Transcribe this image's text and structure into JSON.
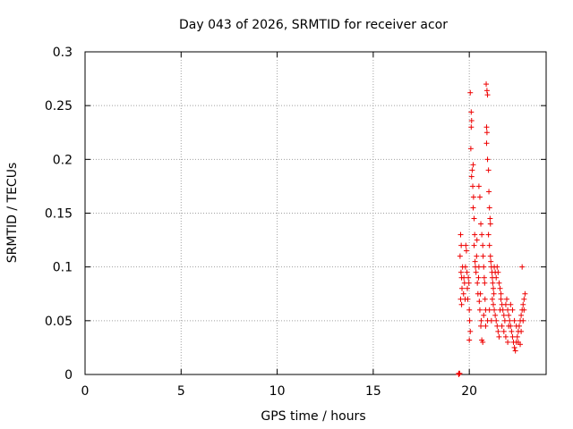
{
  "chart_data": {
    "type": "scatter",
    "title": "Day 043 of 2026, SRMTID for receiver acor",
    "xlabel": "GPS time / hours",
    "ylabel": "SRMTID / TECUs",
    "xlim": [
      0,
      24
    ],
    "ylim": [
      0,
      0.3
    ],
    "xticks": [
      0,
      5,
      10,
      15,
      20
    ],
    "xtick_labels": [
      "0",
      "5",
      "10",
      "15",
      "20"
    ],
    "yticks": [
      0,
      0.05,
      0.1,
      0.15,
      0.2,
      0.25,
      0.3
    ],
    "ytick_labels": [
      "0",
      "0.05",
      "0.1",
      "0.15",
      "0.2",
      "0.25",
      "0.3"
    ],
    "grid": true,
    "marker": "+",
    "color": "#ee0000",
    "series": [
      {
        "name": "SRMTID",
        "points": [
          [
            19.45,
            0.0
          ],
          [
            19.45,
            0.001
          ],
          [
            19.5,
            0.001
          ],
          [
            19.55,
            0.13
          ],
          [
            19.58,
            0.12
          ],
          [
            19.6,
            0.09
          ],
          [
            19.62,
            0.08
          ],
          [
            19.55,
            0.07
          ],
          [
            19.57,
            0.095
          ],
          [
            19.6,
            0.065
          ],
          [
            19.65,
            0.1
          ],
          [
            19.52,
            0.11
          ],
          [
            19.7,
            0.075
          ],
          [
            19.72,
            0.09
          ],
          [
            19.75,
            0.085
          ],
          [
            19.78,
            0.07
          ],
          [
            19.8,
            0.1
          ],
          [
            19.82,
            0.12
          ],
          [
            19.85,
            0.115
          ],
          [
            19.88,
            0.095
          ],
          [
            19.9,
            0.08
          ],
          [
            19.92,
            0.07
          ],
          [
            19.95,
            0.09
          ],
          [
            19.98,
            0.085
          ],
          [
            20.0,
            0.06
          ],
          [
            20.02,
            0.05
          ],
          [
            20.05,
            0.04
          ],
          [
            20.0,
            0.032
          ],
          [
            20.05,
            0.262
          ],
          [
            20.1,
            0.244
          ],
          [
            20.12,
            0.236
          ],
          [
            20.1,
            0.23
          ],
          [
            20.08,
            0.21
          ],
          [
            20.15,
            0.19
          ],
          [
            20.12,
            0.184
          ],
          [
            20.18,
            0.175
          ],
          [
            20.2,
            0.195
          ],
          [
            20.22,
            0.165
          ],
          [
            20.2,
            0.155
          ],
          [
            20.25,
            0.145
          ],
          [
            20.28,
            0.13
          ],
          [
            20.25,
            0.12
          ],
          [
            20.3,
            0.105
          ],
          [
            20.32,
            0.1
          ],
          [
            20.35,
            0.095
          ],
          [
            20.38,
            0.11
          ],
          [
            20.4,
            0.125
          ],
          [
            20.42,
            0.085
          ],
          [
            20.45,
            0.075
          ],
          [
            20.48,
            0.09
          ],
          [
            20.5,
            0.1
          ],
          [
            20.52,
            0.068
          ],
          [
            20.55,
            0.06
          ],
          [
            20.58,
            0.075
          ],
          [
            20.6,
            0.045
          ],
          [
            20.62,
            0.05
          ],
          [
            20.65,
            0.032
          ],
          [
            20.5,
            0.175
          ],
          [
            20.55,
            0.165
          ],
          [
            20.6,
            0.14
          ],
          [
            20.65,
            0.13
          ],
          [
            20.7,
            0.12
          ],
          [
            20.72,
            0.11
          ],
          [
            20.75,
            0.1
          ],
          [
            20.78,
            0.09
          ],
          [
            20.8,
            0.085
          ],
          [
            20.82,
            0.07
          ],
          [
            20.85,
            0.06
          ],
          [
            20.88,
            0.27
          ],
          [
            20.92,
            0.264
          ],
          [
            20.95,
            0.26
          ],
          [
            20.9,
            0.23
          ],
          [
            20.92,
            0.225
          ],
          [
            20.9,
            0.215
          ],
          [
            20.95,
            0.2
          ],
          [
            21.0,
            0.19
          ],
          [
            21.02,
            0.17
          ],
          [
            21.05,
            0.155
          ],
          [
            21.08,
            0.145
          ],
          [
            21.1,
            0.14
          ],
          [
            21.0,
            0.13
          ],
          [
            21.05,
            0.12
          ],
          [
            21.1,
            0.11
          ],
          [
            21.12,
            0.105
          ],
          [
            21.15,
            0.1
          ],
          [
            21.18,
            0.095
          ],
          [
            21.2,
            0.09
          ],
          [
            21.22,
            0.085
          ],
          [
            21.25,
            0.08
          ],
          [
            21.28,
            0.075
          ],
          [
            21.3,
            0.1
          ],
          [
            21.35,
            0.095
          ],
          [
            21.4,
            0.09
          ],
          [
            21.45,
            0.1
          ],
          [
            21.5,
            0.095
          ],
          [
            21.55,
            0.085
          ],
          [
            21.6,
            0.08
          ],
          [
            21.65,
            0.075
          ],
          [
            21.2,
            0.07
          ],
          [
            21.25,
            0.065
          ],
          [
            21.3,
            0.06
          ],
          [
            21.35,
            0.055
          ],
          [
            21.4,
            0.05
          ],
          [
            21.45,
            0.045
          ],
          [
            21.5,
            0.04
          ],
          [
            21.55,
            0.035
          ],
          [
            21.6,
            0.06
          ],
          [
            21.65,
            0.07
          ],
          [
            21.7,
            0.065
          ],
          [
            21.75,
            0.06
          ],
          [
            21.8,
            0.055
          ],
          [
            21.85,
            0.05
          ],
          [
            21.9,
            0.065
          ],
          [
            21.95,
            0.07
          ],
          [
            22.0,
            0.06
          ],
          [
            22.05,
            0.055
          ],
          [
            22.1,
            0.05
          ],
          [
            22.15,
            0.045
          ],
          [
            22.2,
            0.04
          ],
          [
            22.25,
            0.035
          ],
          [
            22.3,
            0.03
          ],
          [
            22.35,
            0.025
          ],
          [
            22.4,
            0.022
          ],
          [
            22.45,
            0.03
          ],
          [
            22.5,
            0.035
          ],
          [
            22.55,
            0.04
          ],
          [
            22.6,
            0.045
          ],
          [
            22.65,
            0.05
          ],
          [
            22.7,
            0.055
          ],
          [
            22.75,
            0.06
          ],
          [
            22.8,
            0.065
          ],
          [
            22.85,
            0.07
          ],
          [
            22.9,
            0.075
          ],
          [
            22.75,
            0.1
          ],
          [
            22.05,
            0.045
          ],
          [
            22.15,
            0.065
          ],
          [
            22.25,
            0.06
          ],
          [
            22.35,
            0.05
          ],
          [
            22.45,
            0.045
          ],
          [
            22.55,
            0.03
          ],
          [
            22.65,
            0.028
          ],
          [
            22.7,
            0.04
          ],
          [
            22.8,
            0.05
          ],
          [
            22.85,
            0.06
          ],
          [
            21.7,
            0.045
          ],
          [
            21.8,
            0.04
          ],
          [
            21.9,
            0.035
          ],
          [
            22.0,
            0.03
          ],
          [
            20.7,
            0.03
          ],
          [
            20.75,
            0.055
          ],
          [
            20.85,
            0.045
          ],
          [
            20.95,
            0.05
          ],
          [
            21.05,
            0.06
          ],
          [
            21.15,
            0.05
          ]
        ]
      }
    ]
  }
}
